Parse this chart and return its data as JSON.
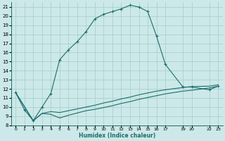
{
  "xlabel": "Humidex (Indice chaleur)",
  "background_color": "#cde8e8",
  "grid_color": "#9ecece",
  "line_color": "#1a6e6a",
  "ylim": [
    8,
    21.5
  ],
  "yticks": [
    8,
    9,
    10,
    11,
    12,
    13,
    14,
    15,
    16,
    17,
    18,
    19,
    20,
    21
  ],
  "xlim": [
    -0.5,
    23.5
  ],
  "xtick_pos": [
    0,
    1,
    2,
    3,
    4,
    5,
    6,
    7,
    8,
    9,
    10,
    11,
    12,
    13,
    14,
    15,
    16,
    17,
    19,
    20,
    22,
    23
  ],
  "xtick_labels": [
    "0",
    "1",
    "2",
    "3",
    "4",
    "5",
    "6",
    "7",
    "8",
    "9",
    "10",
    "11",
    "12",
    "13",
    "14",
    "15",
    "16",
    "17",
    "19",
    "20",
    "22",
    "23"
  ],
  "line1_x": [
    0,
    1,
    2,
    3,
    4,
    5,
    6,
    7,
    8,
    9,
    10,
    11,
    12,
    13,
    14,
    15,
    16,
    17,
    19,
    20,
    22,
    23
  ],
  "line1_y": [
    11.6,
    9.7,
    8.5,
    10.0,
    11.5,
    15.2,
    16.3,
    17.2,
    18.3,
    19.7,
    20.2,
    20.5,
    20.8,
    21.2,
    21.0,
    20.5,
    17.8,
    14.7,
    12.2,
    12.2,
    11.9,
    12.3
  ],
  "line2_x": [
    0,
    2,
    3,
    4,
    5,
    6,
    7,
    8,
    9,
    10,
    11,
    12,
    13,
    14,
    15,
    16,
    17,
    19,
    20,
    22,
    23
  ],
  "line2_y": [
    11.6,
    8.5,
    9.3,
    9.5,
    9.4,
    9.6,
    9.8,
    10.0,
    10.2,
    10.45,
    10.65,
    10.9,
    11.1,
    11.35,
    11.55,
    11.75,
    11.9,
    12.15,
    12.25,
    12.3,
    12.45
  ],
  "line3_x": [
    0,
    2,
    3,
    4,
    5,
    6,
    7,
    8,
    9,
    10,
    11,
    12,
    13,
    14,
    15,
    16,
    17,
    19,
    20,
    22,
    23
  ],
  "line3_y": [
    11.6,
    8.5,
    9.3,
    9.2,
    8.8,
    9.1,
    9.35,
    9.6,
    9.75,
    9.95,
    10.15,
    10.4,
    10.6,
    10.85,
    11.05,
    11.25,
    11.45,
    11.75,
    11.85,
    12.1,
    12.3
  ],
  "figsize": [
    3.2,
    2.0
  ],
  "dpi": 100
}
